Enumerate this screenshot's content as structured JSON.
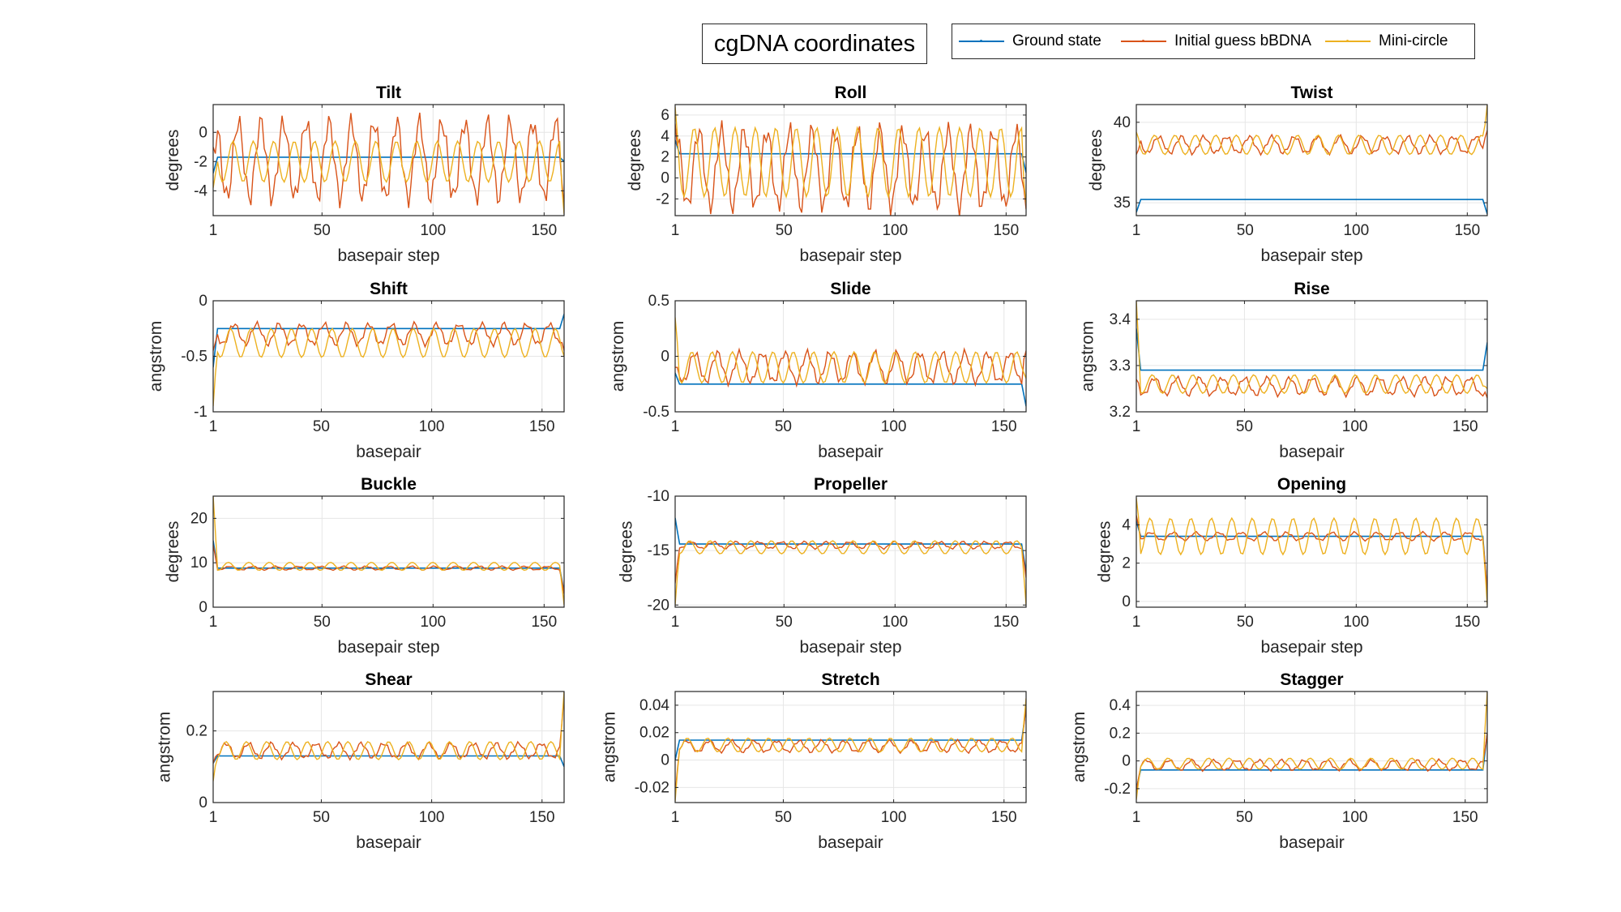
{
  "figure": {
    "title": "cgDNA coordinates",
    "legend": [
      {
        "label": "Ground state",
        "color": "#0072BD"
      },
      {
        "label": "Initial guess bBDNA",
        "color": "#D95319"
      },
      {
        "label": "Mini-circle",
        "color": "#EDB120"
      }
    ]
  },
  "chart_data": [
    {
      "type": "line",
      "title": "Tilt",
      "xlabel": "basepair step",
      "ylabel": "degrees",
      "xlim": [
        1,
        159
      ],
      "ylim": [
        -5.7,
        1.9
      ],
      "xticks": [
        1,
        50,
        100,
        150
      ],
      "yticks": [
        0,
        -2,
        -4
      ],
      "grid": true,
      "series": [
        {
          "name": "Ground state",
          "base": -1.7,
          "amp": 0,
          "start": -2.8,
          "end": -2.0
        },
        {
          "name": "Initial guess bBDNA",
          "base": -1.9,
          "amp": 2.6,
          "start": -1.0,
          "end": -5.0
        },
        {
          "name": "Mini-circle",
          "base": -2.0,
          "amp": 1.4,
          "start": -3.8,
          "end": -5.6
        }
      ]
    },
    {
      "type": "line",
      "title": "Roll",
      "xlabel": "basepair step",
      "ylabel": "degrees",
      "xlim": [
        1,
        159
      ],
      "ylim": [
        -3.6,
        7.0
      ],
      "xticks": [
        1,
        50,
        100,
        150
      ],
      "yticks": [
        6,
        4,
        2,
        0,
        -2
      ],
      "grid": true,
      "series": [
        {
          "name": "Ground state",
          "base": 2.3,
          "amp": 0,
          "start": 3.6,
          "end": 0.5
        },
        {
          "name": "Initial guess bBDNA",
          "base": 0.9,
          "amp": 3.6,
          "start": 5.2,
          "end": -3.0
        },
        {
          "name": "Mini-circle",
          "base": 1.5,
          "amp": 3.3,
          "start": 6.8,
          "end": -2.5
        }
      ]
    },
    {
      "type": "line",
      "title": "Twist",
      "xlabel": "basepair step",
      "ylabel": "degrees",
      "xlim": [
        1,
        159
      ],
      "ylim": [
        34.2,
        41.1
      ],
      "xticks": [
        1,
        50,
        100,
        150
      ],
      "yticks": [
        40,
        35
      ],
      "grid": true,
      "series": [
        {
          "name": "Ground state",
          "base": 35.2,
          "amp": 0,
          "start": 34.4,
          "end": 34.3
        },
        {
          "name": "Initial guess bBDNA",
          "base": 38.6,
          "amp": 0.5,
          "start": 38.0,
          "end": 39.5
        },
        {
          "name": "Mini-circle",
          "base": 38.6,
          "amp": 0.6,
          "start": 39.4,
          "end": 41.1
        }
      ]
    },
    {
      "type": "line",
      "title": "Shift",
      "xlabel": "basepair",
      "ylabel": "angstrom",
      "xlim": [
        1,
        160
      ],
      "ylim": [
        -1.0,
        0.0
      ],
      "xticks": [
        1,
        50,
        100,
        150
      ],
      "yticks": [
        0,
        -0.5,
        -1
      ],
      "grid": true,
      "series": [
        {
          "name": "Ground state",
          "base": -0.25,
          "amp": 0,
          "start": -0.6,
          "end": -0.12
        },
        {
          "name": "Initial guess bBDNA",
          "base": -0.3,
          "amp": 0.09,
          "start": -0.45,
          "end": -0.45
        },
        {
          "name": "Mini-circle",
          "base": -0.38,
          "amp": 0.13,
          "start": -0.95,
          "end": -0.5
        }
      ]
    },
    {
      "type": "line",
      "title": "Slide",
      "xlabel": "basepair",
      "ylabel": "angstrom",
      "xlim": [
        1,
        160
      ],
      "ylim": [
        -0.5,
        0.5
      ],
      "xticks": [
        1,
        50,
        100,
        150
      ],
      "yticks": [
        0.5,
        0,
        -0.5
      ],
      "grid": true,
      "series": [
        {
          "name": "Ground state",
          "base": -0.25,
          "amp": 0,
          "start": -0.15,
          "end": -0.45
        },
        {
          "name": "Initial guess bBDNA",
          "base": -0.1,
          "amp": 0.13,
          "start": -0.1,
          "end": 0.05
        },
        {
          "name": "Mini-circle",
          "base": -0.1,
          "amp": 0.14,
          "start": 0.35,
          "end": -0.2
        }
      ]
    },
    {
      "type": "line",
      "title": "Rise",
      "xlabel": "basepair",
      "ylabel": "angstrom",
      "xlim": [
        1,
        160
      ],
      "ylim": [
        3.2,
        3.44
      ],
      "xticks": [
        1,
        50,
        100,
        150
      ],
      "yticks": [
        3.4,
        3.3,
        3.2
      ],
      "grid": true,
      "series": [
        {
          "name": "Ground state",
          "base": 3.29,
          "amp": 0,
          "start": 3.38,
          "end": 3.35
        },
        {
          "name": "Initial guess bBDNA",
          "base": 3.255,
          "amp": 0.018,
          "start": 3.27,
          "end": 3.23
        },
        {
          "name": "Mini-circle",
          "base": 3.26,
          "amp": 0.02,
          "start": 3.44,
          "end": 3.25
        }
      ]
    },
    {
      "type": "line",
      "title": "Buckle",
      "xlabel": "basepair step",
      "ylabel": "degrees",
      "xlim": [
        1,
        159
      ],
      "ylim": [
        0,
        25
      ],
      "xticks": [
        1,
        50,
        100,
        150
      ],
      "yticks": [
        20,
        10,
        0
      ],
      "grid": true,
      "series": [
        {
          "name": "Ground state",
          "base": 8.8,
          "amp": 0,
          "start": 15.0,
          "end": 3.5
        },
        {
          "name": "Initial guess bBDNA",
          "base": 8.8,
          "amp": 0.4,
          "start": 14.0,
          "end": 3.0
        },
        {
          "name": "Mini-circle",
          "base": 9.2,
          "amp": 0.9,
          "start": 25.0,
          "end": 0.5
        }
      ]
    },
    {
      "type": "line",
      "title": "Propeller",
      "xlabel": "basepair step",
      "ylabel": "degrees",
      "xlim": [
        1,
        159
      ],
      "ylim": [
        -20.2,
        -10
      ],
      "xticks": [
        1,
        50,
        100,
        150
      ],
      "yticks": [
        -10,
        -15,
        -20
      ],
      "grid": true,
      "series": [
        {
          "name": "Ground state",
          "base": -14.4,
          "amp": 0,
          "start": -12.0,
          "end": -17.0
        },
        {
          "name": "Initial guess bBDNA",
          "base": -14.5,
          "amp": 0.3,
          "start": -18.0,
          "end": -17.5
        },
        {
          "name": "Mini-circle",
          "base": -14.7,
          "amp": 0.6,
          "start": -20.0,
          "end": -20.0
        }
      ]
    },
    {
      "type": "line",
      "title": "Opening",
      "xlabel": "basepair step",
      "ylabel": "degrees",
      "xlim": [
        1,
        159
      ],
      "ylim": [
        -0.3,
        5.5
      ],
      "xticks": [
        1,
        50,
        100,
        150
      ],
      "yticks": [
        4,
        2,
        0
      ],
      "grid": true,
      "series": [
        {
          "name": "Ground state",
          "base": 3.4,
          "amp": 0,
          "start": 4.2,
          "end": 0.5
        },
        {
          "name": "Initial guess bBDNA",
          "base": 3.4,
          "amp": 0.2,
          "start": 4.5,
          "end": 0.5
        },
        {
          "name": "Mini-circle",
          "base": 3.4,
          "amp": 0.95,
          "start": 5.4,
          "end": -0.2
        }
      ]
    },
    {
      "type": "line",
      "title": "Shear",
      "xlabel": "basepair",
      "ylabel": "angstrom",
      "xlim": [
        1,
        160
      ],
      "ylim": [
        0,
        0.31
      ],
      "xticks": [
        1,
        50,
        100,
        150
      ],
      "yticks": [
        0.2,
        0
      ],
      "grid": true,
      "series": [
        {
          "name": "Ground state",
          "base": 0.13,
          "amp": 0,
          "start": 0.11,
          "end": 0.1
        },
        {
          "name": "Initial guess bBDNA",
          "base": 0.145,
          "amp": 0.02,
          "start": 0.11,
          "end": 0.3
        },
        {
          "name": "Mini-circle",
          "base": 0.145,
          "amp": 0.025,
          "start": 0.06,
          "end": 0.31
        }
      ]
    },
    {
      "type": "line",
      "title": "Stretch",
      "xlabel": "basepair",
      "ylabel": "angstrom",
      "xlim": [
        1,
        160
      ],
      "ylim": [
        -0.031,
        0.05
      ],
      "xticks": [
        1,
        50,
        100,
        150
      ],
      "yticks": [
        0.04,
        0.02,
        0,
        -0.02
      ],
      "grid": true,
      "series": [
        {
          "name": "Ground state",
          "base": 0.0145,
          "amp": 0,
          "start": 0.0,
          "end": 0.038
        },
        {
          "name": "Initial guess bBDNA",
          "base": 0.01,
          "amp": 0.004,
          "start": -0.025,
          "end": 0.04
        },
        {
          "name": "Mini-circle",
          "base": 0.011,
          "amp": 0.005,
          "start": -0.03,
          "end": 0.045
        }
      ]
    },
    {
      "type": "line",
      "title": "Stagger",
      "xlabel": "basepair",
      "ylabel": "angstrom",
      "xlim": [
        1,
        160
      ],
      "ylim": [
        -0.3,
        0.5
      ],
      "xticks": [
        1,
        50,
        100,
        150
      ],
      "yticks": [
        0.4,
        0.2,
        0,
        -0.2
      ],
      "grid": true,
      "series": [
        {
          "name": "Ground state",
          "base": -0.065,
          "amp": 0,
          "start": -0.2,
          "end": 0.2
        },
        {
          "name": "Initial guess bBDNA",
          "base": -0.03,
          "amp": 0.035,
          "start": -0.22,
          "end": 0.2
        },
        {
          "name": "Mini-circle",
          "base": -0.02,
          "amp": 0.04,
          "start": -0.28,
          "end": 0.5
        }
      ]
    }
  ]
}
